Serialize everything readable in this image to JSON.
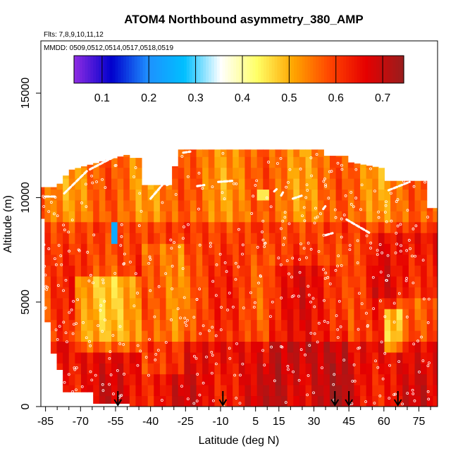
{
  "chart_data": {
    "type": "heatmap",
    "title": "ATOM4 Northbound asymmetry_380_AMP",
    "flights_label": "Flts: 7,8,9,10,11,12",
    "dates_label": "MMDD: 0509,0512,0514,0517,0518,0519",
    "xlabel": "Latitude (deg N)",
    "ylabel": "Altitude (m)",
    "xlim": [
      -87,
      83
    ],
    "ylim": [
      0,
      17500
    ],
    "x_ticks": [
      -85,
      -70,
      -55,
      -40,
      -25,
      -10,
      5,
      15,
      30,
      45,
      60,
      75
    ],
    "x_minor_ticks": [
      -80,
      -75,
      -65,
      -60,
      -50,
      -45,
      -35,
      -30,
      -20,
      -15,
      -5,
      0,
      10,
      20,
      25,
      35,
      40,
      50,
      55,
      65,
      70,
      80
    ],
    "y_ticks": [
      0,
      5000,
      10000,
      15000
    ],
    "colorbar": {
      "min": 0.04,
      "max": 0.745,
      "ticks": [
        0.1,
        0.2,
        0.3,
        0.4,
        0.5,
        0.6,
        0.7
      ],
      "colors": [
        "#8a2be2",
        "#0000cd",
        "#1e90ff",
        "#00bfff",
        "#ffffff",
        "#ffff66",
        "#ffa500",
        "#ff4500",
        "#e60000",
        "#9b1c1c"
      ]
    },
    "profile_arrow_latitudes": [
      -54,
      -9,
      39,
      45,
      66
    ],
    "ceiling_segments": [
      {
        "lat": [
          -85,
          -81
        ],
        "alt": [
          10050,
          10050
        ]
      },
      {
        "lat": [
          -77,
          -67
        ],
        "alt": [
          10200,
          11300
        ]
      },
      {
        "lat": [
          -66,
          -53
        ],
        "alt": [
          11350,
          12100
        ]
      },
      {
        "lat": [
          -40,
          -35
        ],
        "alt": [
          9950,
          10600
        ]
      },
      {
        "lat": [
          -33,
          -31
        ],
        "alt": [
          10600,
          10700
        ]
      },
      {
        "lat": [
          -26,
          -23
        ],
        "alt": [
          12150,
          12200
        ]
      },
      {
        "lat": [
          -20,
          -17
        ],
        "alt": [
          10550,
          10600
        ]
      },
      {
        "lat": [
          -11,
          -5
        ],
        "alt": [
          10750,
          10800
        ]
      },
      {
        "lat": [
          13,
          14
        ],
        "alt": [
          10300,
          10400
        ]
      },
      {
        "lat": [
          16,
          17
        ],
        "alt": [
          10100,
          10300
        ]
      },
      {
        "lat": [
          21,
          25
        ],
        "alt": [
          9950,
          10100
        ]
      },
      {
        "lat": [
          34,
          35
        ],
        "alt": [
          9450,
          9600
        ]
      },
      {
        "lat": [
          35,
          38
        ],
        "alt": [
          8200,
          8300
        ]
      },
      {
        "lat": [
          44,
          54
        ],
        "alt": [
          8950,
          8300
        ]
      },
      {
        "lat": [
          62,
          71
        ],
        "alt": [
          10350,
          10750
        ]
      },
      {
        "lat": [
          27,
          28
        ],
        "alt": [
          12700,
          13000
        ]
      }
    ]
  }
}
